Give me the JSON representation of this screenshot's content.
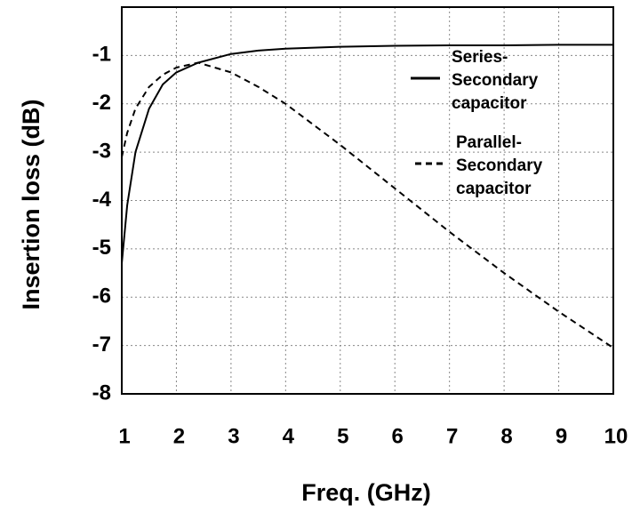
{
  "chart_data": {
    "type": "line",
    "xlabel": "Freq. (GHz)",
    "ylabel": "Insertion loss (dB)",
    "x": [
      1,
      1.1,
      1.25,
      1.5,
      1.75,
      2,
      2.4,
      3,
      3.5,
      4,
      5,
      6,
      7,
      8,
      9,
      10
    ],
    "series": [
      {
        "name": "Series- Secondary capacitor",
        "color": "#000000",
        "dash": "solid",
        "values": [
          -5.3,
          -4.1,
          -3.0,
          -2.1,
          -1.6,
          -1.35,
          -1.15,
          -0.97,
          -0.9,
          -0.86,
          -0.82,
          -0.8,
          -0.79,
          -0.79,
          -0.78,
          -0.78
        ]
      },
      {
        "name": "Parallel- Secondary capacitor",
        "color": "#000000",
        "dash": "dashed",
        "values": [
          -3.1,
          -2.6,
          -2.1,
          -1.65,
          -1.4,
          -1.25,
          -1.15,
          -1.35,
          -1.65,
          -2.0,
          -2.85,
          -3.75,
          -4.65,
          -5.5,
          -6.3,
          -7.05
        ]
      }
    ],
    "xlim": [
      1,
      10
    ],
    "xticks": [
      1,
      2,
      3,
      4,
      5,
      6,
      7,
      8,
      9,
      10
    ],
    "ylim": [
      -8,
      0
    ],
    "yticks": [
      -8,
      -7,
      -6,
      -5,
      -4,
      -3,
      -2,
      -1
    ],
    "grid": true,
    "legend": "upper right"
  }
}
